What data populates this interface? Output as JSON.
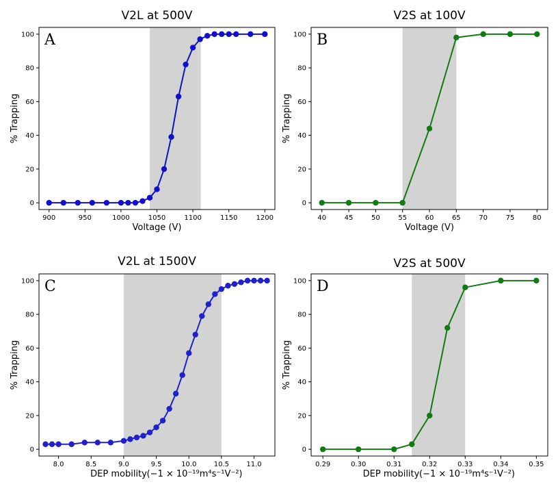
{
  "chart_data": [
    {
      "type": "line",
      "panel": "A",
      "title": "V2L at 500V",
      "xlabel": "Voltage (V)",
      "ylabel": "% Trapping",
      "xlim": [
        886,
        1214
      ],
      "ylim": [
        -4,
        104
      ],
      "xticks": [
        "900",
        "950",
        "1000",
        "1050",
        "1100",
        "1150",
        "1200"
      ],
      "yticks": [
        "0",
        "20",
        "40",
        "60",
        "80",
        "100"
      ],
      "shaded_region": [
        1040,
        1111
      ],
      "series": [
        {
          "color": "#1010cc",
          "x": [
            900,
            920,
            940,
            960,
            980,
            1000,
            1010,
            1020,
            1030,
            1040,
            1050,
            1060,
            1070,
            1080,
            1090,
            1100,
            1110,
            1120,
            1130,
            1140,
            1150,
            1160,
            1180,
            1200
          ],
          "y": [
            0,
            0,
            0,
            0,
            0,
            0,
            0,
            0,
            1,
            3,
            8,
            20,
            39,
            63,
            82,
            92,
            97,
            99,
            100,
            100,
            100,
            100,
            100,
            100
          ]
        }
      ]
    },
    {
      "type": "line",
      "panel": "B",
      "title": "V2S at 100V",
      "xlabel": "Voltage (V)",
      "ylabel": "% Trapping",
      "xlim": [
        38,
        82
      ],
      "ylim": [
        -4,
        104
      ],
      "xticks": [
        "40",
        "45",
        "50",
        "55",
        "60",
        "65",
        "70",
        "75",
        "80"
      ],
      "yticks": [
        "0",
        "20",
        "40",
        "60",
        "80",
        "100"
      ],
      "shaded_region": [
        55,
        65
      ],
      "series": [
        {
          "color": "#127a12",
          "x": [
            40,
            45,
            50,
            55,
            60,
            65,
            70,
            75,
            80
          ],
          "y": [
            0,
            0,
            0,
            0,
            44,
            98,
            100,
            100,
            100
          ]
        }
      ]
    },
    {
      "type": "line",
      "panel": "C",
      "title": "V2L at 1500V",
      "xlabel": "DEP mobility",
      "xlabel_unit": "(−1 × 10⁻¹⁹m⁴s⁻¹V⁻²)",
      "ylabel": "% Trapping",
      "xlim": [
        7.7,
        11.32
      ],
      "ylim": [
        -4,
        104
      ],
      "xticks": [
        "8.0",
        "8.5",
        "9.0",
        "9.5",
        "10.0",
        "10.5",
        "11.0"
      ],
      "yticks": [
        "0",
        "20",
        "40",
        "60",
        "80",
        "100"
      ],
      "shaded_region": [
        9.0,
        10.5
      ],
      "series": [
        {
          "color": "#2020cc",
          "x": [
            7.8,
            7.9,
            8.0,
            8.2,
            8.4,
            8.6,
            8.8,
            9.0,
            9.1,
            9.2,
            9.3,
            9.4,
            9.5,
            9.6,
            9.7,
            9.8,
            9.9,
            10.0,
            10.1,
            10.2,
            10.3,
            10.4,
            10.5,
            10.6,
            10.7,
            10.8,
            10.9,
            11.0,
            11.1,
            11.2
          ],
          "y": [
            3,
            3,
            3,
            3,
            4,
            4,
            4,
            5,
            6,
            7,
            8,
            10,
            13,
            17,
            24,
            33,
            44,
            57,
            68,
            79,
            86,
            92,
            95,
            97,
            98,
            99,
            100,
            100,
            100,
            100
          ]
        }
      ]
    },
    {
      "type": "line",
      "panel": "D",
      "title": "V2S at 500V",
      "xlabel": "DEP mobility",
      "xlabel_unit": "(−1 × 10⁻¹⁹m⁴s⁻¹V⁻²)",
      "ylabel": "% Trapping",
      "xlim": [
        0.2867,
        0.3532
      ],
      "ylim": [
        -4,
        104
      ],
      "xticks": [
        "0.29",
        "0.30",
        "0.31",
        "0.32",
        "0.33",
        "0.34",
        "0.35"
      ],
      "yticks": [
        "0",
        "20",
        "40",
        "60",
        "80",
        "100"
      ],
      "shaded_region": [
        0.315,
        0.33
      ],
      "series": [
        {
          "color": "#127a12",
          "x": [
            0.29,
            0.3,
            0.31,
            0.315,
            0.32,
            0.325,
            0.33,
            0.34,
            0.35
          ],
          "y": [
            0,
            0,
            0,
            3,
            20,
            72,
            96,
            100,
            100
          ]
        }
      ]
    }
  ]
}
